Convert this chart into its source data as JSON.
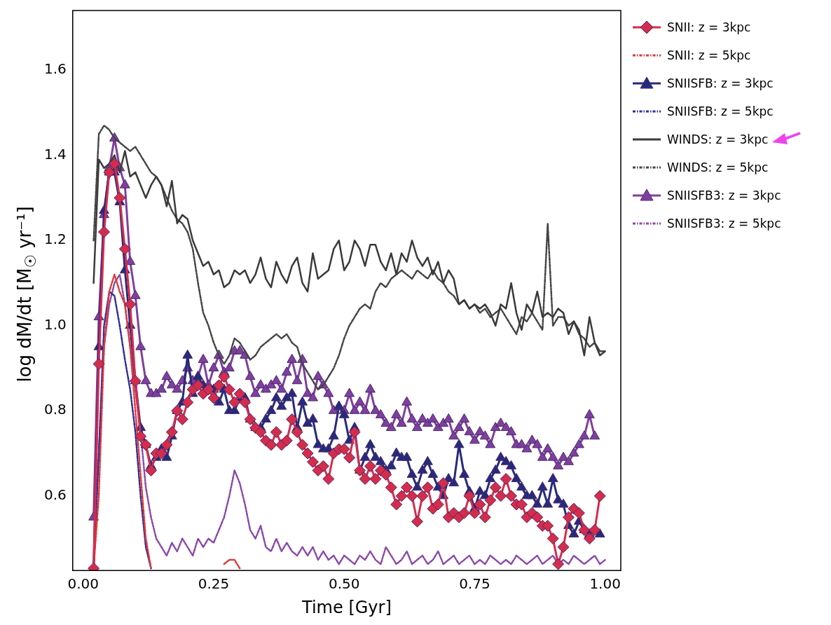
{
  "chart_data": {
    "type": "line",
    "xlabel": "Time [Gyr]",
    "ylabel": "log dM/dt [M$_{☉}$ yr⁻¹]",
    "xlim": [
      -0.02,
      1.03
    ],
    "xticks": [
      {
        "value": 0,
        "label": "0.00"
      },
      {
        "value": 0.25,
        "label": "0.25"
      },
      {
        "value": 0.5,
        "label": "0.50"
      },
      {
        "value": 0.75,
        "label": "0.75"
      },
      {
        "value": 1,
        "label": "1.00"
      }
    ],
    "ylim": [
      0.425,
      1.74
    ],
    "yticks": [
      0.6,
      0.8,
      {
        "value": 1,
        "label": "1.0"
      },
      1.2,
      1.4,
      1.6
    ],
    "grid": false,
    "legend": "top right",
    "x": [
      0.02,
      0.03,
      0.04,
      0.05,
      0.06,
      0.07,
      0.08,
      0.09,
      0.1,
      0.11,
      0.12,
      0.13,
      0.14,
      0.15,
      0.16,
      0.17,
      0.18,
      0.19,
      0.2,
      0.21,
      0.22,
      0.23,
      0.24,
      0.25,
      0.26,
      0.27,
      0.28,
      0.29,
      0.3,
      0.31,
      0.32,
      0.33,
      0.34,
      0.35,
      0.36,
      0.37,
      0.38,
      0.39,
      0.4,
      0.41,
      0.42,
      0.43,
      0.44,
      0.45,
      0.46,
      0.47,
      0.48,
      0.49,
      0.5,
      0.51,
      0.52,
      0.53,
      0.54,
      0.55,
      0.56,
      0.57,
      0.58,
      0.59,
      0.6,
      0.61,
      0.62,
      0.63,
      0.64,
      0.65,
      0.66,
      0.67,
      0.68,
      0.69,
      0.7,
      0.71,
      0.72,
      0.73,
      0.74,
      0.75,
      0.76,
      0.77,
      0.78,
      0.79,
      0.8,
      0.81,
      0.82,
      0.83,
      0.84,
      0.85,
      0.86,
      0.87,
      0.88,
      0.89,
      0.9,
      0.91,
      0.92,
      0.93,
      0.94,
      0.95,
      0.96,
      0.97,
      0.98,
      0.99,
      1.0
    ],
    "series": [
      {
        "name": "SNII: z = 3kpc",
        "color": "#d62c4c",
        "marker": "diamond",
        "line_style": "solid",
        "values": [
          0.43,
          0.91,
          1.22,
          1.36,
          1.38,
          1.3,
          1.18,
          1.05,
          0.87,
          0.74,
          0.72,
          0.66,
          0.7,
          0.7,
          0.72,
          0.75,
          0.8,
          0.78,
          0.82,
          0.85,
          0.86,
          0.84,
          0.85,
          0.83,
          0.86,
          0.88,
          0.85,
          0.82,
          0.84,
          0.82,
          0.78,
          0.76,
          0.75,
          0.73,
          0.72,
          0.75,
          0.72,
          0.73,
          0.78,
          0.75,
          0.72,
          0.7,
          0.68,
          0.66,
          0.67,
          0.64,
          0.7,
          0.71,
          0.71,
          0.69,
          0.75,
          0.66,
          0.64,
          0.67,
          0.64,
          0.66,
          0.65,
          0.62,
          0.58,
          0.6,
          0.62,
          0.6,
          0.54,
          0.6,
          0.62,
          0.57,
          0.58,
          0.63,
          0.55,
          0.56,
          0.55,
          0.56,
          0.6,
          0.56,
          0.58,
          0.55,
          0.59,
          0.62,
          0.6,
          0.64,
          0.6,
          0.58,
          0.58,
          0.55,
          0.56,
          0.55,
          0.53,
          0.53,
          0.5,
          0.44,
          0.48,
          0.55,
          0.57,
          0.56,
          0.52,
          0.5,
          0.52,
          0.6,
          null
        ]
      },
      {
        "name": "SNII: z = 5kpc",
        "color": "#e03a3a",
        "marker": "none",
        "line_style": "dashdot",
        "values": [
          0.43,
          0.6,
          0.95,
          1.08,
          1.12,
          1.08,
          1.05,
          0.95,
          0.8,
          0.65,
          0.5,
          0.43,
          null,
          null,
          null,
          null,
          null,
          null,
          null,
          null,
          null,
          null,
          null,
          null,
          null,
          0.44,
          0.45,
          0.45,
          0.43,
          null,
          null,
          null,
          null,
          null,
          null,
          null,
          null,
          null,
          null,
          null,
          null,
          null,
          null,
          null,
          null,
          null,
          null,
          null,
          null,
          null,
          null,
          null,
          null,
          null,
          null,
          null,
          null,
          null,
          null,
          null,
          null,
          null,
          null,
          null,
          null,
          null,
          null,
          null,
          null,
          null,
          null,
          null,
          null,
          null,
          null,
          null,
          null,
          null,
          null,
          null,
          null,
          null,
          null,
          null,
          null,
          null,
          null,
          null,
          null,
          null,
          null,
          null,
          null,
          null,
          null,
          null,
          null,
          null,
          null
        ]
      },
      {
        "name": "SNIISFB: z = 3kpc",
        "color": "#262a7c",
        "marker": "triangle",
        "line_style": "solid",
        "values": [
          0.43,
          0.95,
          1.27,
          1.36,
          1.36,
          1.29,
          1.13,
          1.0,
          0.87,
          0.76,
          0.72,
          0.67,
          0.69,
          0.71,
          0.69,
          0.74,
          0.8,
          0.82,
          0.93,
          0.84,
          0.88,
          0.86,
          0.85,
          0.85,
          0.82,
          0.85,
          0.8,
          0.8,
          0.83,
          0.83,
          0.78,
          0.76,
          0.76,
          0.78,
          0.8,
          0.83,
          0.81,
          0.83,
          0.84,
          0.76,
          0.82,
          0.77,
          0.78,
          0.72,
          0.71,
          0.71,
          0.74,
          0.81,
          0.79,
          0.73,
          0.76,
          0.66,
          0.69,
          0.72,
          0.69,
          0.68,
          0.66,
          0.67,
          0.7,
          0.69,
          0.69,
          0.65,
          0.62,
          0.66,
          0.68,
          0.65,
          0.62,
          0.6,
          0.64,
          0.63,
          0.72,
          0.65,
          0.61,
          0.57,
          0.61,
          0.6,
          0.64,
          0.66,
          0.69,
          0.68,
          0.67,
          0.64,
          0.62,
          0.6,
          0.6,
          0.58,
          0.62,
          0.58,
          0.64,
          0.59,
          0.58,
          0.53,
          0.51,
          0.54,
          0.52,
          0.51,
          0.52,
          0.51,
          null
        ]
      },
      {
        "name": "SNIISFB: z = 5kpc",
        "color": "#2e2e9a",
        "marker": "none",
        "line_style": "dashdot",
        "values": [
          0.43,
          0.7,
          1.0,
          1.08,
          1.07,
          1.0,
          0.92,
          0.85,
          0.75,
          0.6,
          0.48,
          0.43,
          null,
          null,
          null,
          null,
          null,
          null,
          null,
          null,
          null,
          null,
          null,
          null,
          null,
          null,
          null,
          null,
          null,
          null,
          null,
          null,
          null,
          null,
          null,
          null,
          null,
          null,
          null,
          null,
          null,
          null,
          null,
          null,
          null,
          null,
          null,
          null,
          null,
          null,
          null,
          null,
          null,
          null,
          null,
          null,
          null,
          null,
          null,
          null,
          null,
          null,
          null,
          null,
          null,
          null,
          null,
          null,
          null,
          null,
          null,
          null,
          null,
          null,
          null,
          null,
          null,
          null,
          null,
          null,
          null,
          null,
          null,
          null,
          null,
          null,
          null,
          null,
          null,
          null,
          null,
          null,
          null,
          null,
          null,
          null,
          null,
          null,
          null
        ]
      },
      {
        "name": "WINDS: z = 3kpc",
        "color": "#3a3a3a",
        "marker": "none",
        "line_style": "solid",
        "values": [
          1.1,
          1.39,
          1.37,
          1.38,
          1.4,
          1.36,
          1.41,
          1.35,
          1.36,
          1.33,
          1.3,
          1.33,
          1.35,
          1.33,
          1.28,
          1.34,
          1.24,
          1.26,
          1.25,
          1.2,
          1.17,
          1.14,
          1.15,
          1.12,
          1.13,
          1.09,
          1.1,
          1.13,
          1.12,
          1.13,
          1.1,
          1.12,
          1.16,
          1.11,
          1.09,
          1.15,
          1.12,
          1.1,
          1.14,
          1.16,
          1.1,
          1.08,
          1.17,
          1.11,
          1.12,
          1.13,
          1.18,
          1.2,
          1.13,
          1.15,
          1.2,
          1.18,
          1.14,
          1.19,
          1.19,
          1.15,
          1.13,
          1.17,
          1.12,
          1.17,
          1.15,
          1.2,
          1.16,
          1.14,
          1.16,
          1.12,
          1.15,
          1.1,
          1.13,
          1.11,
          1.05,
          1.06,
          1.04,
          1.05,
          1.04,
          1.05,
          1.03,
          1.0,
          1.05,
          1.04,
          1.1,
          1.03,
          0.99,
          1.05,
          1.03,
          1.08,
          1.02,
          1.03,
          1.02,
          1.04,
          1.03,
          0.98,
          1.01,
          0.99,
          0.93,
          1.02,
          0.96,
          0.93,
          0.94
        ]
      },
      {
        "name": "WINDS: z = 5kpc",
        "color": "#444444",
        "marker": "none",
        "line_style": "dashdot",
        "values": [
          1.2,
          1.45,
          1.47,
          1.46,
          1.44,
          1.43,
          1.42,
          1.41,
          1.42,
          1.4,
          1.38,
          1.36,
          1.35,
          1.33,
          1.3,
          1.27,
          1.25,
          1.24,
          1.22,
          1.18,
          1.1,
          1.03,
          1.0,
          0.96,
          0.93,
          0.91,
          0.93,
          0.97,
          0.96,
          0.94,
          0.92,
          0.93,
          0.95,
          0.96,
          0.97,
          0.98,
          0.97,
          0.98,
          0.96,
          0.95,
          0.91,
          0.89,
          0.87,
          0.85,
          0.86,
          0.88,
          0.9,
          0.93,
          0.97,
          1.0,
          1.02,
          1.04,
          1.05,
          1.04,
          1.08,
          1.1,
          1.09,
          1.11,
          1.12,
          1.13,
          1.12,
          1.11,
          1.13,
          1.12,
          1.11,
          1.13,
          1.11,
          1.1,
          1.08,
          1.07,
          1.05,
          1.06,
          1.04,
          1.05,
          1.03,
          1.04,
          1.02,
          1.03,
          1.04,
          1.02,
          1.0,
          0.98,
          1.02,
          1.01,
          1.03,
          1.01,
          0.99,
          1.24,
          1.0,
          1.02,
          1.02,
          1.0,
          1.01,
          0.98,
          0.97,
          0.95,
          0.96,
          0.94,
          0.94
        ]
      },
      {
        "name": "SNIISFB3: z = 3kpc",
        "color": "#7f3f9f",
        "marker": "triangle",
        "line_style": "solid",
        "values": [
          0.55,
          1.02,
          1.26,
          1.37,
          1.44,
          1.37,
          1.33,
          1.15,
          1.07,
          0.95,
          0.87,
          0.84,
          0.84,
          0.85,
          0.88,
          0.86,
          0.85,
          0.87,
          0.9,
          0.87,
          0.88,
          0.92,
          0.86,
          0.9,
          0.93,
          0.89,
          0.9,
          0.94,
          0.94,
          0.93,
          0.88,
          0.84,
          0.86,
          0.85,
          0.86,
          0.87,
          0.85,
          0.89,
          0.92,
          0.87,
          0.92,
          0.84,
          0.83,
          0.88,
          0.86,
          0.84,
          0.8,
          0.81,
          0.8,
          0.84,
          0.8,
          0.82,
          0.8,
          0.85,
          0.8,
          0.79,
          0.77,
          0.76,
          0.79,
          0.77,
          0.82,
          0.78,
          0.76,
          0.78,
          0.77,
          0.78,
          0.76,
          0.77,
          0.78,
          0.74,
          0.76,
          0.78,
          0.75,
          0.73,
          0.75,
          0.74,
          0.72,
          0.76,
          0.77,
          0.76,
          0.75,
          0.72,
          0.72,
          0.71,
          0.73,
          0.72,
          0.69,
          0.71,
          0.69,
          0.67,
          0.69,
          0.68,
          0.7,
          0.72,
          0.74,
          0.79,
          0.74,
          null,
          null
        ]
      },
      {
        "name": "SNIISFB3: z = 5kpc",
        "color": "#8a48a8",
        "marker": "none",
        "line_style": "dashdot",
        "values": [
          0.43,
          0.7,
          0.95,
          1.05,
          1.1,
          1.12,
          1.05,
          0.95,
          0.85,
          0.75,
          0.62,
          0.55,
          0.5,
          0.48,
          0.46,
          0.49,
          0.47,
          0.5,
          0.48,
          0.46,
          0.5,
          0.48,
          0.5,
          0.49,
          0.52,
          0.55,
          0.6,
          0.66,
          0.63,
          0.58,
          0.52,
          0.5,
          0.53,
          0.48,
          0.47,
          0.5,
          0.47,
          0.49,
          0.47,
          0.46,
          0.48,
          0.46,
          0.48,
          0.45,
          0.47,
          0.45,
          0.46,
          0.44,
          0.46,
          0.45,
          0.44,
          0.46,
          0.45,
          0.47,
          0.45,
          0.44,
          0.48,
          0.46,
          0.44,
          0.45,
          0.47,
          0.44,
          0.45,
          0.46,
          0.44,
          0.45,
          0.47,
          0.44,
          0.45,
          0.46,
          0.44,
          0.45,
          0.46,
          0.44,
          0.45,
          0.44,
          0.46,
          0.45,
          0.44,
          0.45,
          0.44,
          0.46,
          0.45,
          0.44,
          0.45,
          0.46,
          0.44,
          0.45,
          0.46,
          0.44,
          0.45,
          0.44,
          0.46,
          0.45,
          0.44,
          0.45,
          0.46,
          0.44,
          0.45
        ]
      }
    ]
  }
}
